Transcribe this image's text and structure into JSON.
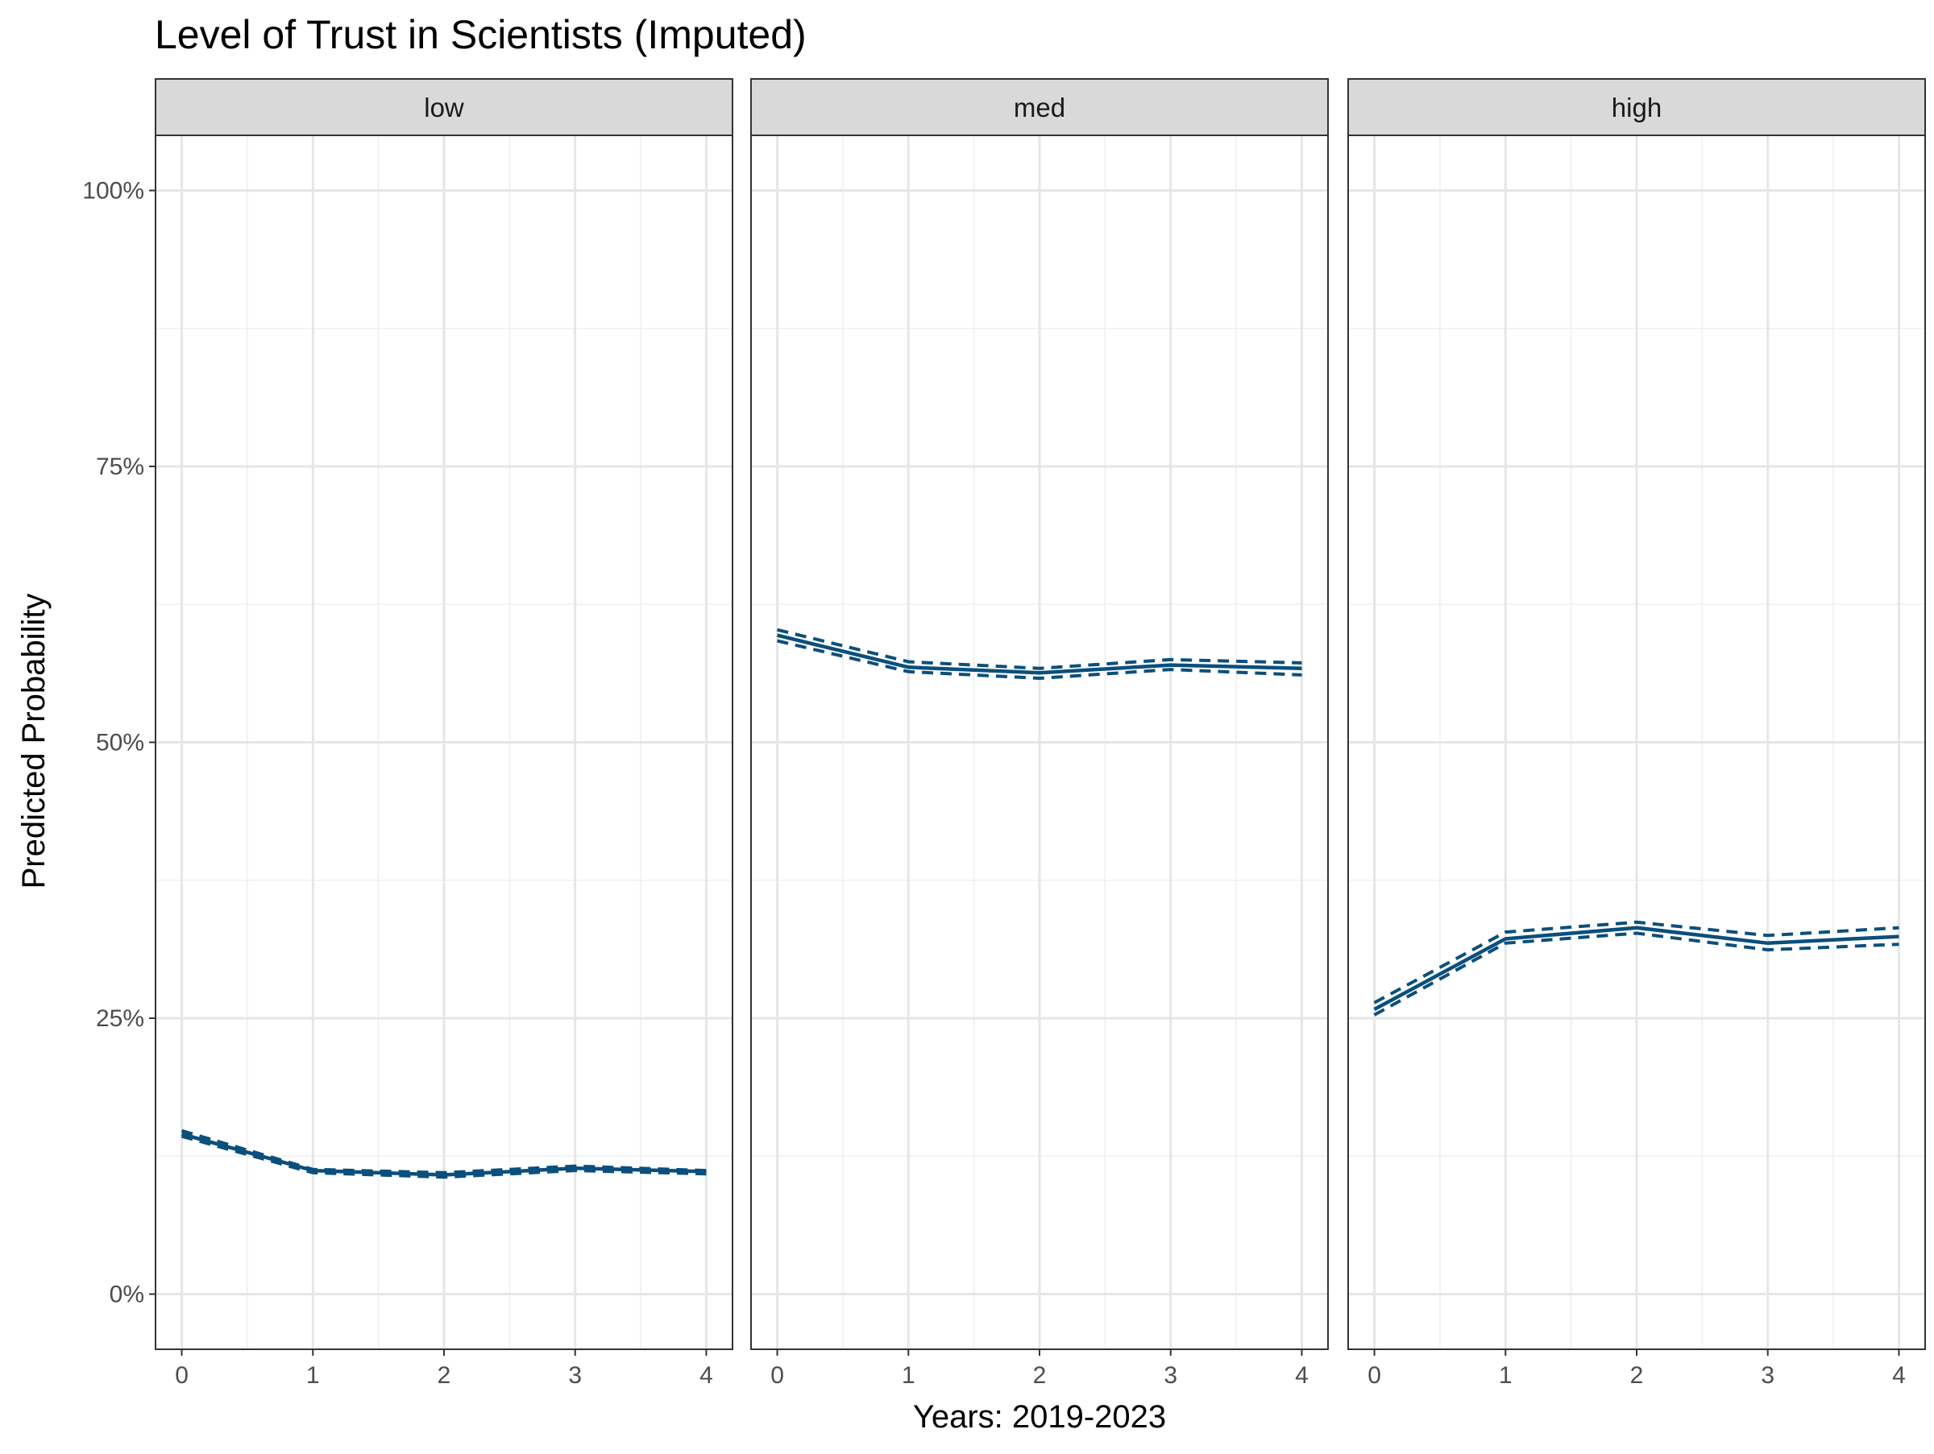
{
  "chart_data": {
    "type": "line",
    "title": "Level of Trust in Scientists (Imputed)",
    "xlabel": "Years: 2019-2023",
    "ylabel": "Predicted Probability",
    "x": [
      0,
      1,
      2,
      3,
      4
    ],
    "x_ticks": [
      "0",
      "1",
      "2",
      "3",
      "4"
    ],
    "xlim": [
      -0.2,
      4.2
    ],
    "ylim": [
      -0.05,
      1.05
    ],
    "y_ticks": [
      0,
      0.25,
      0.5,
      0.75,
      1.0
    ],
    "y_tick_labels": [
      "0%",
      "25%",
      "50%",
      "75%",
      "100%"
    ],
    "grid": true,
    "line_color": "#0b4f7c",
    "panels": [
      {
        "label": "low",
        "estimate": [
          0.145,
          0.112,
          0.108,
          0.114,
          0.111
        ],
        "lower": [
          0.143,
          0.11,
          0.106,
          0.112,
          0.109
        ],
        "upper": [
          0.148,
          0.113,
          0.11,
          0.116,
          0.112
        ]
      },
      {
        "label": "med",
        "estimate": [
          0.597,
          0.568,
          0.563,
          0.57,
          0.567
        ],
        "lower": [
          0.592,
          0.564,
          0.558,
          0.566,
          0.561
        ],
        "upper": [
          0.602,
          0.573,
          0.567,
          0.575,
          0.572
        ]
      },
      {
        "label": "high",
        "estimate": [
          0.258,
          0.322,
          0.332,
          0.318,
          0.324
        ],
        "lower": [
          0.253,
          0.318,
          0.327,
          0.312,
          0.317
        ],
        "upper": [
          0.264,
          0.328,
          0.337,
          0.325,
          0.332
        ]
      }
    ]
  }
}
